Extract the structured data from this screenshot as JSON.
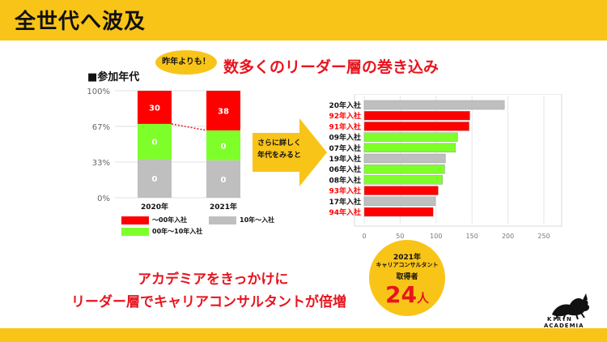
{
  "slide": {
    "title": "全世代へ波及",
    "left_label": "■参加年代",
    "bubble_note": "昨年よりも！",
    "headline": "数多くのリーダー層の巻き込み",
    "arrow_text_1": "さらに詳しく",
    "arrow_text_2": "年代をみると",
    "circle_year": "2021年",
    "circle_type": "キャリアコンサルタント",
    "circle_label": "取得者",
    "circle_count": "24",
    "circle_unit": "人",
    "message_1": "アカデミアをきっかけに",
    "message_2": "リーダー層でキャリアコンサルタントが倍増",
    "logo_line_1": "KIRIN",
    "logo_line_2": "ACADEMIA"
  },
  "colors": {
    "accent_yellow": "#f9c418",
    "red": "#ff0000",
    "green": "#7fff2a",
    "gray": "#bfbfbf",
    "headline_red": "#e8141e"
  },
  "chart_data": [
    {
      "type": "bar",
      "stacked": true,
      "categories": [
        "2020年",
        "2021年"
      ],
      "yticks": [
        "0%",
        "33%",
        "67%",
        "100%"
      ],
      "series": [
        {
          "name": "10年～入社",
          "color": "#bfbfbf",
          "values": [
            0,
            0
          ],
          "share": [
            0.36,
            0.35
          ]
        },
        {
          "name": "00年～10年入社",
          "color": "#7fff2a",
          "values": [
            0,
            0
          ],
          "share": [
            0.33,
            0.28
          ]
        },
        {
          "name": "～00年入社",
          "color": "#ff0000",
          "values": [
            30,
            38
          ],
          "share": [
            0.31,
            0.37
          ]
        }
      ],
      "legend": [
        {
          "label": "～00年入社",
          "color": "#ff0000"
        },
        {
          "label": "10年～入社",
          "color": "#bfbfbf"
        },
        {
          "label": "00年～10年入社",
          "color": "#7fff2a"
        }
      ]
    },
    {
      "type": "bar",
      "orientation": "horizontal",
      "categories": [
        "20年入社",
        "92年入社",
        "91年入社",
        "09年入社",
        "07年入社",
        "19年入社",
        "06年入社",
        "08年入社",
        "93年入社",
        "17年入社",
        "94年入社"
      ],
      "values": [
        195,
        147,
        146,
        130,
        127,
        113,
        112,
        109,
        103,
        99,
        96
      ],
      "colors": [
        "#bfbfbf",
        "#ff0000",
        "#ff0000",
        "#7fff2a",
        "#7fff2a",
        "#bfbfbf",
        "#7fff2a",
        "#7fff2a",
        "#ff0000",
        "#bfbfbf",
        "#ff0000"
      ],
      "label_colors": [
        "#111111",
        "#ff0000",
        "#ff0000",
        "#111111",
        "#111111",
        "#111111",
        "#111111",
        "#111111",
        "#ff0000",
        "#111111",
        "#ff0000"
      ],
      "xlim": [
        0,
        250
      ],
      "xticks": [
        "0",
        "50",
        "100",
        "150",
        "200",
        "250"
      ],
      "grid": true
    }
  ]
}
